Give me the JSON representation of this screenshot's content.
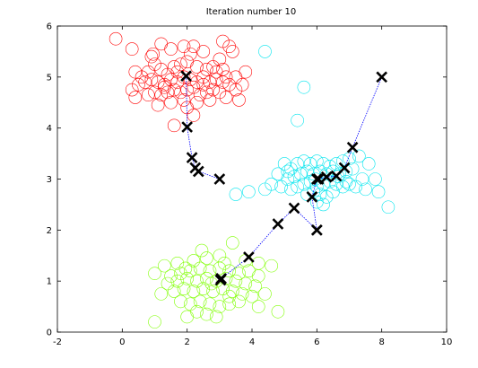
{
  "chart_data": {
    "type": "scatter",
    "title": "Iteration number 10",
    "xlabel": "",
    "ylabel": "",
    "xlim": [
      -2,
      10
    ],
    "ylim": [
      0,
      6
    ],
    "xticks": [
      "-2",
      "0",
      "2",
      "4",
      "6",
      "8",
      "10"
    ],
    "yticks": [
      "0",
      "1",
      "2",
      "3",
      "4",
      "5",
      "6"
    ],
    "grid": false,
    "legend": "none",
    "series": [
      {
        "marker": "circle-open",
        "color": "#ff0000",
        "points": [
          [
            -0.2,
            5.75
          ],
          [
            0.3,
            5.55
          ],
          [
            0.9,
            5.4
          ],
          [
            1.2,
            5.65
          ],
          [
            1.5,
            5.55
          ],
          [
            1.9,
            5.6
          ],
          [
            2.2,
            5.6
          ],
          [
            2.5,
            5.5
          ],
          [
            3.1,
            5.7
          ],
          [
            3.3,
            5.6
          ],
          [
            3.4,
            5.5
          ],
          [
            3.0,
            5.35
          ],
          [
            2.8,
            5.2
          ],
          [
            0.4,
            5.1
          ],
          [
            0.6,
            5.0
          ],
          [
            0.8,
            5.1
          ],
          [
            1.0,
            5.25
          ],
          [
            1.2,
            5.15
          ],
          [
            1.4,
            5.05
          ],
          [
            1.6,
            5.2
          ],
          [
            1.8,
            5.25
          ],
          [
            2.0,
            5.3
          ],
          [
            2.3,
            5.2
          ],
          [
            2.6,
            5.15
          ],
          [
            2.9,
            5.1
          ],
          [
            3.2,
            5.0
          ],
          [
            3.5,
            5.0
          ],
          [
            3.8,
            5.1
          ],
          [
            3.7,
            4.85
          ],
          [
            0.3,
            4.75
          ],
          [
            0.5,
            4.85
          ],
          [
            0.7,
            4.9
          ],
          [
            0.9,
            4.95
          ],
          [
            1.1,
            4.9
          ],
          [
            1.3,
            4.85
          ],
          [
            1.5,
            4.95
          ],
          [
            1.7,
            4.9
          ],
          [
            1.9,
            5.0
          ],
          [
            2.1,
            4.95
          ],
          [
            2.3,
            4.9
          ],
          [
            2.5,
            4.85
          ],
          [
            2.7,
            4.9
          ],
          [
            2.9,
            4.95
          ],
          [
            3.1,
            4.9
          ],
          [
            3.3,
            4.85
          ],
          [
            3.5,
            4.75
          ],
          [
            0.4,
            4.6
          ],
          [
            0.8,
            4.65
          ],
          [
            1.0,
            4.7
          ],
          [
            1.2,
            4.65
          ],
          [
            1.4,
            4.7
          ],
          [
            1.6,
            4.75
          ],
          [
            1.8,
            4.7
          ],
          [
            2.0,
            4.75
          ],
          [
            2.2,
            4.8
          ],
          [
            2.4,
            4.65
          ],
          [
            2.6,
            4.7
          ],
          [
            2.8,
            4.75
          ],
          [
            3.0,
            4.7
          ],
          [
            3.2,
            4.6
          ],
          [
            1.1,
            4.45
          ],
          [
            1.5,
            4.5
          ],
          [
            1.9,
            4.55
          ],
          [
            2.3,
            4.5
          ],
          [
            2.7,
            4.55
          ],
          [
            3.6,
            4.55
          ],
          [
            2.0,
            4.4
          ],
          [
            1.6,
            4.05
          ],
          [
            2.2,
            4.25
          ],
          [
            1.3,
            4.8
          ],
          [
            2.5,
            5.0
          ],
          [
            1.7,
            5.1
          ],
          [
            3.1,
            5.15
          ],
          [
            0.95,
            5.45
          ],
          [
            2.1,
            5.45
          ]
        ]
      },
      {
        "marker": "circle-open",
        "color": "#00e5ee",
        "points": [
          [
            4.4,
            5.5
          ],
          [
            5.6,
            4.8
          ],
          [
            5.4,
            4.15
          ],
          [
            4.6,
            2.9
          ],
          [
            4.4,
            2.8
          ],
          [
            3.9,
            2.75
          ],
          [
            3.5,
            2.7
          ],
          [
            4.8,
            3.1
          ],
          [
            5.0,
            3.3
          ],
          [
            5.2,
            3.2
          ],
          [
            5.4,
            3.3
          ],
          [
            5.6,
            3.35
          ],
          [
            5.8,
            3.3
          ],
          [
            6.0,
            3.35
          ],
          [
            6.2,
            3.3
          ],
          [
            6.4,
            3.25
          ],
          [
            6.6,
            3.3
          ],
          [
            6.8,
            3.35
          ],
          [
            7.0,
            3.4
          ],
          [
            7.3,
            3.45
          ],
          [
            7.6,
            3.3
          ],
          [
            5.1,
            3.0
          ],
          [
            5.3,
            3.05
          ],
          [
            5.5,
            3.1
          ],
          [
            5.7,
            3.15
          ],
          [
            5.9,
            3.1
          ],
          [
            6.1,
            3.15
          ],
          [
            6.3,
            3.1
          ],
          [
            6.5,
            3.15
          ],
          [
            6.7,
            3.1
          ],
          [
            6.9,
            3.15
          ],
          [
            7.1,
            3.2
          ],
          [
            7.4,
            3.0
          ],
          [
            7.8,
            3.0
          ],
          [
            4.9,
            2.85
          ],
          [
            5.2,
            2.8
          ],
          [
            5.4,
            2.85
          ],
          [
            5.6,
            2.9
          ],
          [
            5.8,
            2.95
          ],
          [
            6.0,
            2.85
          ],
          [
            6.2,
            2.9
          ],
          [
            6.4,
            2.95
          ],
          [
            6.6,
            2.9
          ],
          [
            6.8,
            2.85
          ],
          [
            7.0,
            2.9
          ],
          [
            7.2,
            2.85
          ],
          [
            7.5,
            2.8
          ],
          [
            5.7,
            2.7
          ],
          [
            5.9,
            2.75
          ],
          [
            6.1,
            2.7
          ],
          [
            6.3,
            2.65
          ],
          [
            6.5,
            2.75
          ],
          [
            6.0,
            2.55
          ],
          [
            6.2,
            2.5
          ],
          [
            7.9,
            2.75
          ],
          [
            8.2,
            2.45
          ],
          [
            6.9,
            2.95
          ],
          [
            5.1,
            3.15
          ],
          [
            6.65,
            3.05
          ],
          [
            5.95,
            3.0
          ]
        ]
      },
      {
        "marker": "circle-open",
        "color": "#7fff00",
        "points": [
          [
            3.4,
            1.75
          ],
          [
            3.0,
            1.5
          ],
          [
            2.6,
            1.45
          ],
          [
            2.2,
            1.4
          ],
          [
            1.7,
            1.35
          ],
          [
            1.3,
            1.3
          ],
          [
            1.0,
            1.15
          ],
          [
            3.8,
            1.4
          ],
          [
            4.2,
            1.35
          ],
          [
            4.6,
            1.3
          ],
          [
            1.5,
            1.1
          ],
          [
            1.8,
            1.15
          ],
          [
            2.1,
            1.2
          ],
          [
            2.4,
            1.25
          ],
          [
            2.7,
            1.2
          ],
          [
            3.0,
            1.25
          ],
          [
            3.3,
            1.2
          ],
          [
            3.6,
            1.15
          ],
          [
            3.9,
            1.2
          ],
          [
            4.2,
            1.1
          ],
          [
            1.4,
            0.95
          ],
          [
            1.7,
            1.0
          ],
          [
            2.0,
            1.05
          ],
          [
            2.3,
            1.0
          ],
          [
            2.6,
            1.05
          ],
          [
            2.9,
            1.0
          ],
          [
            3.2,
            1.05
          ],
          [
            3.5,
            1.0
          ],
          [
            3.8,
            0.95
          ],
          [
            4.1,
            0.9
          ],
          [
            1.2,
            0.75
          ],
          [
            1.6,
            0.8
          ],
          [
            1.9,
            0.85
          ],
          [
            2.2,
            0.8
          ],
          [
            2.5,
            0.85
          ],
          [
            2.8,
            0.8
          ],
          [
            3.1,
            0.85
          ],
          [
            3.4,
            0.8
          ],
          [
            3.7,
            0.75
          ],
          [
            4.0,
            0.7
          ],
          [
            4.4,
            0.75
          ],
          [
            1.8,
            0.6
          ],
          [
            2.1,
            0.55
          ],
          [
            2.4,
            0.6
          ],
          [
            2.7,
            0.55
          ],
          [
            3.0,
            0.5
          ],
          [
            3.3,
            0.55
          ],
          [
            3.6,
            0.6
          ],
          [
            2.3,
            0.4
          ],
          [
            2.6,
            0.35
          ],
          [
            2.9,
            0.3
          ],
          [
            4.8,
            0.4
          ],
          [
            1.0,
            0.2
          ],
          [
            2.0,
            0.3
          ],
          [
            3.3,
            0.7
          ],
          [
            4.2,
            0.5
          ],
          [
            2.45,
            1.6
          ],
          [
            3.15,
            1.35
          ],
          [
            1.95,
            1.25
          ],
          [
            2.75,
            0.95
          ]
        ]
      }
    ],
    "centroid_paths": [
      {
        "color": "#0000ff",
        "points": [
          [
            3.0,
            3.0
          ],
          [
            2.35,
            3.15
          ],
          [
            2.25,
            3.22
          ],
          [
            2.15,
            3.42
          ],
          [
            2.0,
            4.02
          ],
          [
            1.97,
            5.02
          ]
        ]
      },
      {
        "color": "#0000ff",
        "points": [
          [
            6.0,
            2.0
          ],
          [
            5.85,
            2.65
          ],
          [
            6.0,
            3.0
          ]
        ]
      },
      {
        "color": "#0000ff",
        "points": [
          [
            8.0,
            5.0
          ],
          [
            7.1,
            3.62
          ],
          [
            6.85,
            3.22
          ],
          [
            6.6,
            3.06
          ],
          [
            6.3,
            3.04
          ],
          [
            6.05,
            3.0
          ]
        ]
      },
      {
        "color": "#0000ff",
        "points": [
          [
            6.0,
            2.0
          ],
          [
            5.3,
            2.43
          ],
          [
            4.8,
            2.12
          ],
          [
            3.9,
            1.47
          ],
          [
            3.05,
            1.05
          ],
          [
            3.03,
            1.02
          ]
        ]
      }
    ],
    "centroid_marker": "x",
    "centroid_color": "#000000"
  }
}
